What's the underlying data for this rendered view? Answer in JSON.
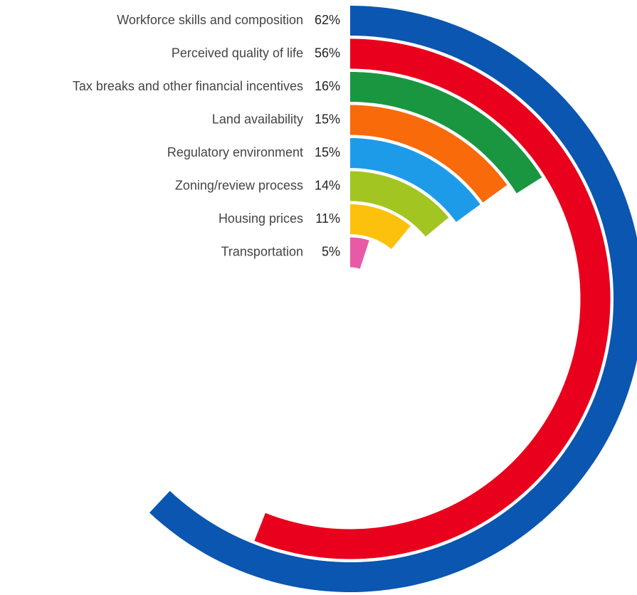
{
  "chart_data": {
    "type": "radial-bar",
    "categories": [
      "Workforce skills and composition",
      "Perceived quality of life",
      "Tax breaks and other financial incentives",
      "Land availability",
      "Regulatory environment",
      "Zoning/review process",
      "Housing prices",
      "Transportation"
    ],
    "values": [
      62,
      56,
      16,
      15,
      15,
      14,
      11,
      5
    ],
    "value_labels": [
      "62%",
      "56%",
      "16%",
      "15%",
      "15%",
      "14%",
      "11%",
      "5%"
    ],
    "colors": [
      "#0a56b0",
      "#e8001c",
      "#1a9641",
      "#f96a0a",
      "#1e9be8",
      "#a3c521",
      "#fcc10c",
      "#e95aa6"
    ],
    "xlim": [
      0,
      100
    ]
  }
}
